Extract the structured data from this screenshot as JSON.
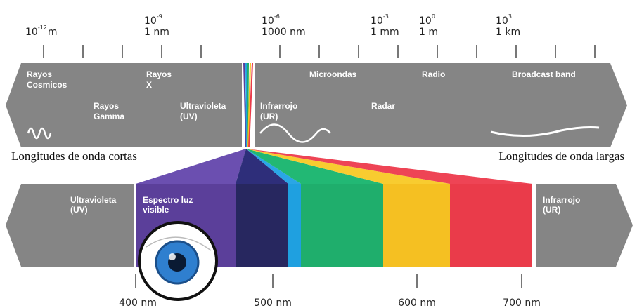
{
  "scale": [
    {
      "base": "10",
      "exponent": "-12",
      "unit": "m"
    },
    {
      "base": "10",
      "exponent": "-9",
      "unit": "1 nm"
    },
    {
      "base": "10",
      "exponent": "-6",
      "unit": "1000 nm"
    },
    {
      "base": "10",
      "exponent": "-3",
      "unit": "1 mm"
    },
    {
      "base": "10",
      "exponent": "0",
      "unit": "1 m"
    },
    {
      "base": "10",
      "exponent": "3",
      "unit": "1 km"
    }
  ],
  "spectrum_bands": [
    {
      "lines": [
        "Rayos",
        "Cosmicos"
      ]
    },
    {
      "lines": [
        "Rayos",
        "X"
      ]
    },
    {
      "lines": [
        "Rayos",
        "Gamma"
      ]
    },
    {
      "lines": [
        "Ultravioleta",
        "(UV)"
      ]
    },
    {
      "lines": [
        "Infrarrojo",
        "(UR)"
      ]
    },
    {
      "lines": [
        "Microondas"
      ]
    },
    {
      "lines": [
        "Radar"
      ]
    },
    {
      "lines": [
        "Radio"
      ]
    },
    {
      "lines": [
        "Broadcast band"
      ]
    }
  ],
  "short_waves": "Longitudes de onda cortas",
  "long_waves": "Longitudes de onda largas",
  "visible_bands": [
    {
      "lines": [
        "Ultravioleta",
        "(UV)"
      ]
    },
    {
      "lines": [
        "Espectro luz",
        "visible"
      ]
    },
    {
      "lines": [
        "Infrarrojo",
        "(UR)"
      ]
    }
  ],
  "visible_scale": [
    "400 nm",
    "500 nm",
    "600 nm",
    "700 nm"
  ]
}
